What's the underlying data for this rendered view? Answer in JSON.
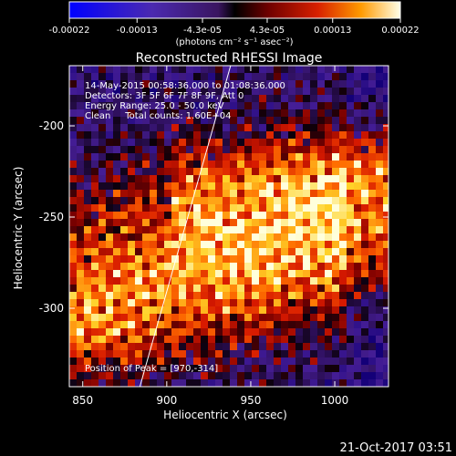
{
  "colorbar": {
    "tick_labels": [
      "-0.00022",
      "-0.00013",
      "-4.3e-05",
      "4.3e-05",
      "0.00013",
      "0.00022"
    ],
    "tick_values": [
      -0.00022,
      -0.00013,
      -4.3e-05,
      4.3e-05,
      0.00013,
      0.00022
    ],
    "range": [
      -0.00022,
      0.00022
    ],
    "units": "(photons cm⁻² s⁻¹ asec⁻²)"
  },
  "footer": {
    "timestamp": "21-Oct-2017 03:51"
  },
  "chart_data": {
    "type": "heatmap",
    "title": "Reconstructed RHESSI Image",
    "xlabel": "Heliocentric X (arcsec)",
    "ylabel": "Heliocentric Y (arcsec)",
    "xlim": [
      842,
      1032
    ],
    "ylim": [
      -343,
      -167
    ],
    "x_ticks": [
      850,
      900,
      950,
      1000
    ],
    "y_ticks": [
      -200,
      -250,
      -300
    ],
    "annotations": [
      "14-May-2015 00:58:36.000 to 01:08:36.000",
      "Detectors: 3F 5F 6F 7F 8F 9F, Att 0",
      "Energy Range: 25.0 - 50.0 keV",
      "Clean     Total counts: 1.60E+04"
    ],
    "peak_label": "Position of Peak = [970,-314]",
    "peak": [
      970,
      -314
    ],
    "limb_line": [
      [
        884,
        -343
      ],
      [
        938,
        -167
      ]
    ],
    "colors": {
      "background": "#000000",
      "foreground": "#ffffff"
    }
  }
}
